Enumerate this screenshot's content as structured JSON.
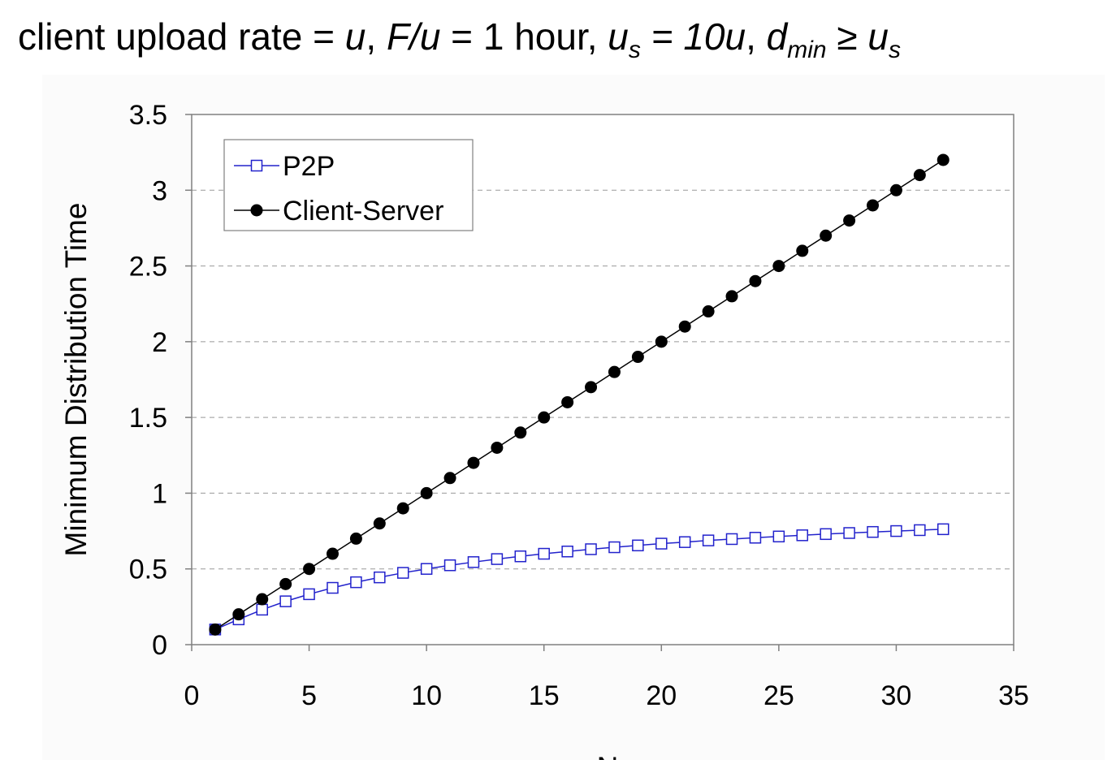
{
  "title": {
    "segments": [
      {
        "text": "client upload rate = ",
        "style": "normal"
      },
      {
        "text": "u",
        "style": "italic"
      },
      {
        "text": ",  ",
        "style": "normal"
      },
      {
        "text": "F/u",
        "style": "italic"
      },
      {
        "text": " = 1 hour,  ",
        "style": "normal"
      },
      {
        "text": "u",
        "style": "italic"
      },
      {
        "text": "s",
        "style": "sub"
      },
      {
        "text": " = 10u",
        "style": "italic"
      },
      {
        "text": ",  ",
        "style": "normal"
      },
      {
        "text": "d",
        "style": "italic"
      },
      {
        "text": "min",
        "style": "sub"
      },
      {
        "text": " ≥ ",
        "style": "normal"
      },
      {
        "text": "u",
        "style": "italic"
      },
      {
        "text": "s",
        "style": "sub"
      }
    ]
  },
  "chart_data": {
    "type": "line",
    "xlabel": "N",
    "ylabel": "Minimum Distribution Time",
    "xlim": [
      0,
      35
    ],
    "ylim": [
      0,
      3.5
    ],
    "x_ticks": [
      "0",
      "5",
      "10",
      "15",
      "20",
      "25",
      "30",
      "35"
    ],
    "y_ticks": [
      "0",
      "0.5",
      "1",
      "1.5",
      "2",
      "2.5",
      "3",
      "3.5"
    ],
    "grid": "horizontal dashed",
    "legend_position": "top-left",
    "x": [
      1,
      2,
      3,
      4,
      5,
      6,
      7,
      8,
      9,
      10,
      11,
      12,
      13,
      14,
      15,
      16,
      17,
      18,
      19,
      20,
      21,
      22,
      23,
      24,
      25,
      26,
      27,
      28,
      29,
      30,
      31,
      32
    ],
    "series": [
      {
        "name": "P2P",
        "color": "#2222cc",
        "marker": "hollow-square",
        "values": [
          0.1,
          0.167,
          0.231,
          0.286,
          0.333,
          0.375,
          0.412,
          0.444,
          0.474,
          0.5,
          0.524,
          0.545,
          0.565,
          0.583,
          0.6,
          0.615,
          0.63,
          0.643,
          0.655,
          0.667,
          0.677,
          0.688,
          0.697,
          0.706,
          0.714,
          0.722,
          0.73,
          0.737,
          0.744,
          0.75,
          0.756,
          0.762
        ]
      },
      {
        "name": "Client-Server",
        "color": "#000000",
        "marker": "filled-circle",
        "values": [
          0.1,
          0.2,
          0.3,
          0.4,
          0.5,
          0.6,
          0.7,
          0.8,
          0.9,
          1.0,
          1.1,
          1.2,
          1.3,
          1.4,
          1.5,
          1.6,
          1.7,
          1.8,
          1.9,
          2.0,
          2.1,
          2.2,
          2.3,
          2.4,
          2.5,
          2.6,
          2.7,
          2.8,
          2.9,
          3.0,
          3.1,
          3.2
        ]
      }
    ]
  }
}
